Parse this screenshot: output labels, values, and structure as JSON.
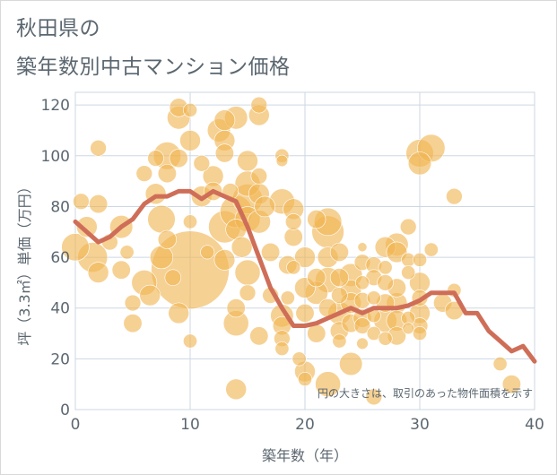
{
  "header": {
    "title_line1": "秋田県の",
    "title_line2": "築年数別中古マンション価格"
  },
  "chart_data": {
    "type": "scatter",
    "xlabel": "築年数（年）",
    "ylabel": "坪（3.3㎡）単価（万円）",
    "xlim": [
      0,
      40
    ],
    "ylim": [
      0,
      125
    ],
    "x_ticks": [
      "0",
      "10",
      "20",
      "30",
      "40"
    ],
    "y_ticks": [
      "0",
      "20",
      "40",
      "60",
      "80",
      "100",
      "120"
    ],
    "grid": true,
    "note": "円の大きさは、取引のあった物件面積を示す",
    "colors": {
      "bubble": "#f0b552",
      "line": "#cf6e58",
      "grid": "#cdd7e3",
      "axis_text": "#5b6770"
    },
    "trend_line": {
      "x": [
        0,
        1,
        2,
        3,
        4,
        5,
        6,
        7,
        8,
        9,
        10,
        11,
        12,
        13,
        14,
        15,
        16,
        17,
        18,
        19,
        20,
        21,
        22,
        23,
        24,
        25,
        26,
        27,
        28,
        29,
        30,
        31,
        32,
        33,
        34,
        35,
        36,
        37,
        38,
        39,
        40
      ],
      "y": [
        74,
        70,
        66,
        68,
        72,
        75,
        81,
        84,
        84,
        86,
        86,
        83,
        86,
        84,
        82,
        72,
        60,
        48,
        40,
        33,
        33,
        34,
        36,
        38,
        40,
        38,
        40,
        40,
        40,
        41,
        43,
        46,
        46,
        46,
        38,
        38,
        31,
        27,
        23,
        25,
        19
      ]
    },
    "bubbles": [
      {
        "x": 10,
        "y": 55,
        "s": 34
      },
      {
        "x": 0,
        "y": 64,
        "s": 12
      },
      {
        "x": 0.5,
        "y": 82,
        "s": 7
      },
      {
        "x": 1,
        "y": 72,
        "s": 9
      },
      {
        "x": 1.5,
        "y": 60,
        "s": 13
      },
      {
        "x": 2,
        "y": 103,
        "s": 7
      },
      {
        "x": 2,
        "y": 54,
        "s": 9
      },
      {
        "x": 2,
        "y": 81,
        "s": 8
      },
      {
        "x": 3,
        "y": 66,
        "s": 7
      },
      {
        "x": 4,
        "y": 72,
        "s": 10
      },
      {
        "x": 4,
        "y": 55,
        "s": 8
      },
      {
        "x": 4.5,
        "y": 62,
        "s": 6
      },
      {
        "x": 5,
        "y": 42,
        "s": 7
      },
      {
        "x": 5,
        "y": 34,
        "s": 8
      },
      {
        "x": 6,
        "y": 93,
        "s": 7
      },
      {
        "x": 6,
        "y": 50,
        "s": 11
      },
      {
        "x": 6.5,
        "y": 45,
        "s": 9
      },
      {
        "x": 7,
        "y": 99,
        "s": 7
      },
      {
        "x": 7,
        "y": 85,
        "s": 9
      },
      {
        "x": 7.5,
        "y": 75,
        "s": 12
      },
      {
        "x": 7.5,
        "y": 60,
        "s": 10
      },
      {
        "x": 8,
        "y": 100,
        "s": 12
      },
      {
        "x": 8,
        "y": 93,
        "s": 8
      },
      {
        "x": 8,
        "y": 67,
        "s": 8
      },
      {
        "x": 8.5,
        "y": 52,
        "s": 7
      },
      {
        "x": 9,
        "y": 119,
        "s": 8
      },
      {
        "x": 9,
        "y": 115,
        "s": 10
      },
      {
        "x": 9,
        "y": 99,
        "s": 8
      },
      {
        "x": 9,
        "y": 38,
        "s": 9
      },
      {
        "x": 10,
        "y": 118,
        "s": 6
      },
      {
        "x": 10,
        "y": 106,
        "s": 9
      },
      {
        "x": 10,
        "y": 74,
        "s": 6
      },
      {
        "x": 10,
        "y": 27,
        "s": 6
      },
      {
        "x": 11,
        "y": 97,
        "s": 7
      },
      {
        "x": 11,
        "y": 84,
        "s": 9
      },
      {
        "x": 11.5,
        "y": 62,
        "s": 6
      },
      {
        "x": 12,
        "y": 92,
        "s": 9
      },
      {
        "x": 12,
        "y": 86,
        "s": 8
      },
      {
        "x": 12.5,
        "y": 110,
        "s": 10
      },
      {
        "x": 13,
        "y": 114,
        "s": 9
      },
      {
        "x": 13,
        "y": 106,
        "s": 9
      },
      {
        "x": 13,
        "y": 101,
        "s": 8
      },
      {
        "x": 13,
        "y": 72,
        "s": 14
      },
      {
        "x": 13,
        "y": 59,
        "s": 9
      },
      {
        "x": 13.5,
        "y": 86,
        "s": 7
      },
      {
        "x": 14,
        "y": 115,
        "s": 10
      },
      {
        "x": 14,
        "y": 78,
        "s": 14
      },
      {
        "x": 14,
        "y": 71,
        "s": 9
      },
      {
        "x": 14,
        "y": 40,
        "s": 8
      },
      {
        "x": 14,
        "y": 34,
        "s": 11
      },
      {
        "x": 14,
        "y": 8,
        "s": 9
      },
      {
        "x": 14.5,
        "y": 64,
        "s": 9
      },
      {
        "x": 15,
        "y": 98,
        "s": 9
      },
      {
        "x": 15,
        "y": 89,
        "s": 11
      },
      {
        "x": 15,
        "y": 83,
        "s": 13
      },
      {
        "x": 15,
        "y": 75,
        "s": 11
      },
      {
        "x": 15,
        "y": 46,
        "s": 7
      },
      {
        "x": 15,
        "y": 54,
        "s": 11
      },
      {
        "x": 16,
        "y": 120,
        "s": 7
      },
      {
        "x": 16,
        "y": 116,
        "s": 9
      },
      {
        "x": 16,
        "y": 92,
        "s": 7
      },
      {
        "x": 16,
        "y": 85,
        "s": 9
      },
      {
        "x": 16,
        "y": 74,
        "s": 10
      },
      {
        "x": 16,
        "y": 29,
        "s": 8
      },
      {
        "x": 16.5,
        "y": 80,
        "s": 9
      },
      {
        "x": 17,
        "y": 62,
        "s": 8
      },
      {
        "x": 17,
        "y": 45,
        "s": 7
      },
      {
        "x": 18,
        "y": 100,
        "s": 6
      },
      {
        "x": 18,
        "y": 98,
        "s": 5
      },
      {
        "x": 18,
        "y": 82,
        "s": 11
      },
      {
        "x": 18,
        "y": 37,
        "s": 10
      },
      {
        "x": 18,
        "y": 33,
        "s": 8
      },
      {
        "x": 18,
        "y": 28,
        "s": 7
      },
      {
        "x": 18,
        "y": 24,
        "s": 6
      },
      {
        "x": 18.5,
        "y": 57,
        "s": 8
      },
      {
        "x": 18.5,
        "y": 44,
        "s": 6
      },
      {
        "x": 19,
        "y": 79,
        "s": 9
      },
      {
        "x": 19,
        "y": 74,
        "s": 7
      },
      {
        "x": 19,
        "y": 68,
        "s": 8
      },
      {
        "x": 19,
        "y": 56,
        "s": 6
      },
      {
        "x": 19.5,
        "y": 20,
        "s": 6
      },
      {
        "x": 20,
        "y": 60,
        "s": 9
      },
      {
        "x": 20,
        "y": 48,
        "s": 9
      },
      {
        "x": 20,
        "y": 38,
        "s": 8
      },
      {
        "x": 20,
        "y": 15,
        "s": 9
      },
      {
        "x": 20,
        "y": 12,
        "s": 6
      },
      {
        "x": 21,
        "y": 75,
        "s": 8
      },
      {
        "x": 21,
        "y": 52,
        "s": 8
      },
      {
        "x": 21,
        "y": 46,
        "s": 10
      },
      {
        "x": 21,
        "y": 30,
        "s": 8
      },
      {
        "x": 22,
        "y": 74,
        "s": 12
      },
      {
        "x": 22,
        "y": 70,
        "s": 14
      },
      {
        "x": 22,
        "y": 60,
        "s": 9
      },
      {
        "x": 22,
        "y": 51,
        "s": 11
      },
      {
        "x": 22,
        "y": 40,
        "s": 8
      },
      {
        "x": 22,
        "y": 10,
        "s": 11
      },
      {
        "x": 23,
        "y": 62,
        "s": 8
      },
      {
        "x": 23,
        "y": 52,
        "s": 8
      },
      {
        "x": 23,
        "y": 45,
        "s": 7
      },
      {
        "x": 23,
        "y": 38,
        "s": 10
      },
      {
        "x": 23,
        "y": 31,
        "s": 8
      },
      {
        "x": 23,
        "y": 27,
        "s": 6
      },
      {
        "x": 24,
        "y": 53,
        "s": 10
      },
      {
        "x": 24,
        "y": 47,
        "s": 9
      },
      {
        "x": 24,
        "y": 42,
        "s": 9
      },
      {
        "x": 24,
        "y": 34,
        "s": 8
      },
      {
        "x": 24,
        "y": 18,
        "s": 10
      },
      {
        "x": 25,
        "y": 64,
        "s": 4
      },
      {
        "x": 25,
        "y": 58,
        "s": 7
      },
      {
        "x": 25,
        "y": 50,
        "s": 6
      },
      {
        "x": 25,
        "y": 43,
        "s": 7
      },
      {
        "x": 25,
        "y": 36,
        "s": 8
      },
      {
        "x": 25,
        "y": 33,
        "s": 7
      },
      {
        "x": 25,
        "y": 26,
        "s": 5
      },
      {
        "x": 26,
        "y": 57,
        "s": 7
      },
      {
        "x": 26,
        "y": 52,
        "s": 7
      },
      {
        "x": 26,
        "y": 44,
        "s": 6
      },
      {
        "x": 26,
        "y": 37,
        "s": 6
      },
      {
        "x": 26,
        "y": 30,
        "s": 6
      },
      {
        "x": 26,
        "y": 5,
        "s": 7
      },
      {
        "x": 27,
        "y": 64,
        "s": 9
      },
      {
        "x": 27,
        "y": 56,
        "s": 6
      },
      {
        "x": 27,
        "y": 50,
        "s": 7
      },
      {
        "x": 27,
        "y": 42,
        "s": 8
      },
      {
        "x": 27,
        "y": 35,
        "s": 10
      },
      {
        "x": 27,
        "y": 28,
        "s": 6
      },
      {
        "x": 28,
        "y": 65,
        "s": 10
      },
      {
        "x": 28,
        "y": 62,
        "s": 9
      },
      {
        "x": 28,
        "y": 48,
        "s": 8
      },
      {
        "x": 28,
        "y": 42,
        "s": 9
      },
      {
        "x": 28,
        "y": 35,
        "s": 9
      },
      {
        "x": 28,
        "y": 29,
        "s": 8
      },
      {
        "x": 29,
        "y": 72,
        "s": 7
      },
      {
        "x": 29,
        "y": 59,
        "s": 6
      },
      {
        "x": 29,
        "y": 54,
        "s": 6
      },
      {
        "x": 29,
        "y": 36,
        "s": 6
      },
      {
        "x": 29,
        "y": 32,
        "s": 5
      },
      {
        "x": 30,
        "y": 101,
        "s": 12
      },
      {
        "x": 30,
        "y": 97,
        "s": 10
      },
      {
        "x": 30,
        "y": 59,
        "s": 6
      },
      {
        "x": 30,
        "y": 50,
        "s": 9
      },
      {
        "x": 30,
        "y": 44,
        "s": 7
      },
      {
        "x": 30,
        "y": 38,
        "s": 9
      },
      {
        "x": 30,
        "y": 33,
        "s": 7
      },
      {
        "x": 30,
        "y": 30,
        "s": 6
      },
      {
        "x": 31,
        "y": 103,
        "s": 12
      },
      {
        "x": 31,
        "y": 63,
        "s": 6
      },
      {
        "x": 32,
        "y": 42,
        "s": 8
      },
      {
        "x": 33,
        "y": 84,
        "s": 7
      },
      {
        "x": 33,
        "y": 47,
        "s": 6
      },
      {
        "x": 33,
        "y": 39,
        "s": 8
      },
      {
        "x": 37,
        "y": 18,
        "s": 6
      },
      {
        "x": 38,
        "y": 10,
        "s": 8
      }
    ]
  }
}
